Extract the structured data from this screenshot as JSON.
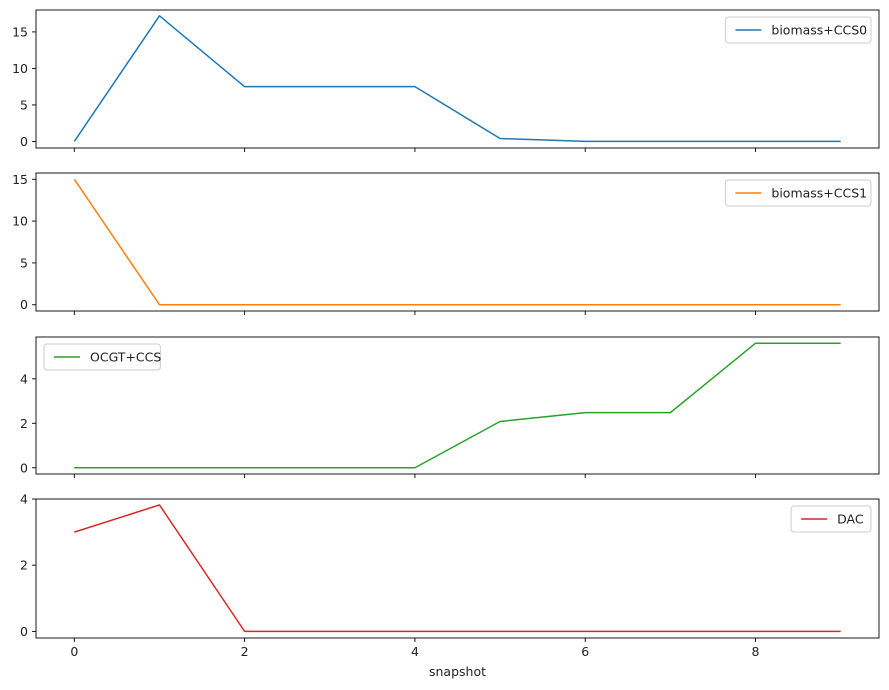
{
  "chart_data": {
    "type": "line",
    "layout": "stacked-subplots",
    "sharex": true,
    "xlabel": "snapshot",
    "x": [
      0,
      1,
      2,
      3,
      4,
      5,
      6,
      7,
      8,
      9
    ],
    "xlim": [
      -0.45,
      9.45
    ],
    "xticks": [
      0,
      2,
      4,
      6,
      8
    ],
    "grid": false,
    "panels": [
      {
        "series": [
          {
            "name": "biomass+CCS0",
            "color": "#1f77b4",
            "values": [
              0,
              17.2,
              7.5,
              7.5,
              7.5,
              0.4,
              0.0,
              0.0,
              0.0,
              0.0
            ]
          }
        ],
        "ylim": [
          -0.9,
          18.0
        ],
        "yticks": [
          0,
          5,
          10,
          15
        ],
        "legend_loc": "upper right"
      },
      {
        "series": [
          {
            "name": "biomass+CCS1",
            "color": "#ff7f0e",
            "values": [
              15.0,
              0,
              0,
              0,
              0,
              0,
              0,
              0,
              0,
              0
            ]
          }
        ],
        "ylim": [
          -0.75,
          15.75
        ],
        "yticks": [
          0,
          5,
          10,
          15
        ],
        "legend_loc": "upper right"
      },
      {
        "series": [
          {
            "name": "OCGT+CCS",
            "color": "#2ca02c",
            "values": [
              0,
              0,
              0,
              0,
              0,
              2.08,
              2.48,
              2.48,
              5.6,
              5.6
            ]
          }
        ],
        "ylim": [
          -0.28,
          5.88
        ],
        "yticks": [
          0,
          2,
          4
        ],
        "legend_loc": "upper left"
      },
      {
        "series": [
          {
            "name": "DAC",
            "color": "#d62728",
            "values": [
              3.0,
              3.82,
              0,
              0,
              0,
              0,
              0,
              0,
              0,
              0
            ]
          }
        ],
        "ylim": [
          -0.2,
          4.0
        ],
        "yticks": [
          0,
          2,
          4
        ],
        "legend_loc": "upper right"
      }
    ]
  }
}
